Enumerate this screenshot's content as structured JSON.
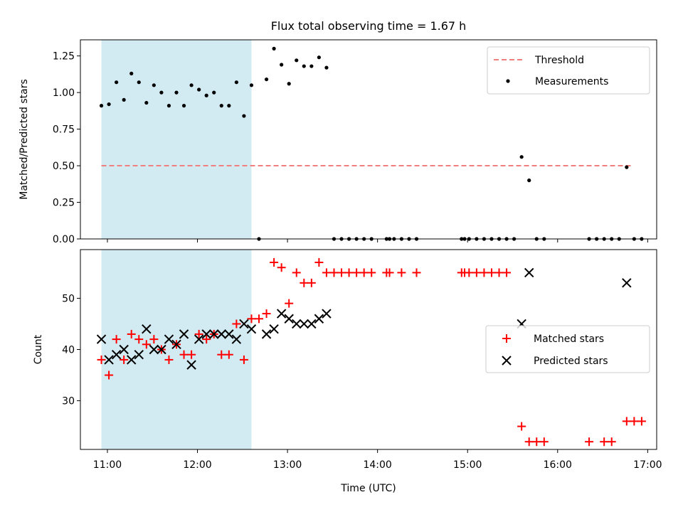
{
  "chart_data": [
    {
      "type": "scatter",
      "title": "Flux total observing time = 1.67 h",
      "xlabel": "",
      "ylabel": "Matched/Predicted stars",
      "xlim": [
        "10:42",
        "17:06"
      ],
      "ylim": [
        0,
        1.36
      ],
      "yticks": [
        "0.00",
        "0.25",
        "0.50",
        "0.75",
        "1.00",
        "1.25"
      ],
      "shaded_span": [
        "10:56",
        "12:36"
      ],
      "legend_position": "upper right",
      "threshold": {
        "name": "Threshold",
        "value": 0.5,
        "x_range": [
          "10:56",
          "16:50"
        ],
        "color": "#f08080",
        "style": "dashed"
      },
      "series": [
        {
          "name": "Measurements",
          "color": "#000000",
          "marker": "dot",
          "points": [
            [
              "10:56",
              0.91
            ],
            [
              "11:01",
              0.92
            ],
            [
              "11:06",
              1.07
            ],
            [
              "11:11",
              0.95
            ],
            [
              "11:16",
              1.13
            ],
            [
              "11:21",
              1.07
            ],
            [
              "11:26",
              0.93
            ],
            [
              "11:31",
              1.05
            ],
            [
              "11:36",
              1.0
            ],
            [
              "11:41",
              0.91
            ],
            [
              "11:46",
              1.0
            ],
            [
              "11:51",
              0.91
            ],
            [
              "11:56",
              1.05
            ],
            [
              "12:01",
              1.02
            ],
            [
              "12:06",
              0.98
            ],
            [
              "12:11",
              1.0
            ],
            [
              "12:16",
              0.91
            ],
            [
              "12:21",
              0.91
            ],
            [
              "12:26",
              1.07
            ],
            [
              "12:31",
              0.84
            ],
            [
              "12:36",
              1.05
            ],
            [
              "12:41",
              0.0
            ],
            [
              "12:46",
              1.09
            ],
            [
              "12:51",
              1.3
            ],
            [
              "12:56",
              1.19
            ],
            [
              "13:01",
              1.06
            ],
            [
              "13:06",
              1.22
            ],
            [
              "13:11",
              1.18
            ],
            [
              "13:16",
              1.18
            ],
            [
              "13:21",
              1.24
            ],
            [
              "13:26",
              1.17
            ],
            [
              "13:31",
              0.0
            ],
            [
              "13:36",
              0.0
            ],
            [
              "13:41",
              0.0
            ],
            [
              "13:46",
              0.0
            ],
            [
              "13:51",
              0.0
            ],
            [
              "13:56",
              0.0
            ],
            [
              "14:06",
              0.0
            ],
            [
              "14:08",
              0.0
            ],
            [
              "14:11",
              0.0
            ],
            [
              "14:16",
              0.0
            ],
            [
              "14:21",
              0.0
            ],
            [
              "14:26",
              0.0
            ],
            [
              "14:56",
              0.0
            ],
            [
              "14:58",
              0.0
            ],
            [
              "15:01",
              0.0
            ],
            [
              "15:06",
              0.0
            ],
            [
              "15:11",
              0.0
            ],
            [
              "15:16",
              0.0
            ],
            [
              "15:21",
              0.0
            ],
            [
              "15:26",
              0.0
            ],
            [
              "15:31",
              0.0
            ],
            [
              "15:36",
              0.56
            ],
            [
              "15:41",
              0.4
            ],
            [
              "15:46",
              0.0
            ],
            [
              "15:51",
              0.0
            ],
            [
              "16:21",
              0.0
            ],
            [
              "16:26",
              0.0
            ],
            [
              "16:31",
              0.0
            ],
            [
              "16:36",
              0.0
            ],
            [
              "16:41",
              0.0
            ],
            [
              "16:46",
              0.49
            ],
            [
              "16:51",
              0.0
            ],
            [
              "16:56",
              0.0
            ]
          ]
        }
      ]
    },
    {
      "type": "scatter",
      "title": "",
      "xlabel": "Time (UTC)",
      "ylabel": "Count",
      "xlim": [
        "10:42",
        "17:06"
      ],
      "ylim": [
        20.5,
        59.5
      ],
      "yticks": [
        "30",
        "40",
        "50"
      ],
      "xticks": [
        "11:00",
        "12:00",
        "13:00",
        "14:00",
        "15:00",
        "16:00",
        "17:00"
      ],
      "shaded_span": [
        "10:56",
        "12:36"
      ],
      "legend_position": "center right",
      "series": [
        {
          "name": "Matched stars",
          "color": "#ff0000",
          "marker": "plus",
          "points": [
            [
              "10:56",
              38
            ],
            [
              "11:01",
              35
            ],
            [
              "11:06",
              42
            ],
            [
              "11:11",
              38
            ],
            [
              "11:16",
              43
            ],
            [
              "11:21",
              42
            ],
            [
              "11:26",
              41
            ],
            [
              "11:31",
              42
            ],
            [
              "11:36",
              40
            ],
            [
              "11:41",
              38
            ],
            [
              "11:46",
              41
            ],
            [
              "11:51",
              39
            ],
            [
              "11:56",
              39
            ],
            [
              "12:01",
              43
            ],
            [
              "12:06",
              42
            ],
            [
              "12:11",
              43
            ],
            [
              "12:16",
              39
            ],
            [
              "12:21",
              39
            ],
            [
              "12:26",
              45
            ],
            [
              "12:31",
              38
            ],
            [
              "12:36",
              46
            ],
            [
              "12:41",
              46
            ],
            [
              "12:46",
              47
            ],
            [
              "12:51",
              57
            ],
            [
              "12:56",
              56
            ],
            [
              "13:01",
              49
            ],
            [
              "13:06",
              55
            ],
            [
              "13:11",
              53
            ],
            [
              "13:16",
              53
            ],
            [
              "13:21",
              57
            ],
            [
              "13:26",
              55
            ],
            [
              "13:31",
              55
            ],
            [
              "13:36",
              55
            ],
            [
              "13:41",
              55
            ],
            [
              "13:46",
              55
            ],
            [
              "13:51",
              55
            ],
            [
              "13:56",
              55
            ],
            [
              "14:06",
              55
            ],
            [
              "14:08",
              55
            ],
            [
              "14:16",
              55
            ],
            [
              "14:26",
              55
            ],
            [
              "14:56",
              55
            ],
            [
              "14:58",
              55
            ],
            [
              "15:01",
              55
            ],
            [
              "15:06",
              55
            ],
            [
              "15:11",
              55
            ],
            [
              "15:16",
              55
            ],
            [
              "15:21",
              55
            ],
            [
              "15:26",
              55
            ],
            [
              "15:36",
              25
            ],
            [
              "15:41",
              22
            ],
            [
              "15:46",
              22
            ],
            [
              "15:51",
              22
            ],
            [
              "16:21",
              22
            ],
            [
              "16:31",
              22
            ],
            [
              "16:36",
              22
            ],
            [
              "16:46",
              26
            ],
            [
              "16:51",
              26
            ],
            [
              "16:56",
              26
            ]
          ]
        },
        {
          "name": "Predicted stars",
          "color": "#000000",
          "marker": "cross",
          "points": [
            [
              "10:56",
              42
            ],
            [
              "11:01",
              38
            ],
            [
              "11:06",
              39
            ],
            [
              "11:11",
              40
            ],
            [
              "11:16",
              38
            ],
            [
              "11:21",
              39
            ],
            [
              "11:26",
              44
            ],
            [
              "11:31",
              40
            ],
            [
              "11:36",
              40
            ],
            [
              "11:41",
              42
            ],
            [
              "11:46",
              41
            ],
            [
              "11:51",
              43
            ],
            [
              "11:56",
              37
            ],
            [
              "12:01",
              42
            ],
            [
              "12:06",
              43
            ],
            [
              "12:11",
              43
            ],
            [
              "12:16",
              43
            ],
            [
              "12:21",
              43
            ],
            [
              "12:26",
              42
            ],
            [
              "12:31",
              45
            ],
            [
              "12:36",
              44
            ],
            [
              "12:46",
              43
            ],
            [
              "12:51",
              44
            ],
            [
              "12:56",
              47
            ],
            [
              "13:01",
              46
            ],
            [
              "13:06",
              45
            ],
            [
              "13:11",
              45
            ],
            [
              "13:16",
              45
            ],
            [
              "13:21",
              46
            ],
            [
              "13:26",
              47
            ],
            [
              "15:36",
              45
            ],
            [
              "15:41",
              55
            ],
            [
              "16:46",
              53
            ]
          ]
        }
      ]
    }
  ]
}
